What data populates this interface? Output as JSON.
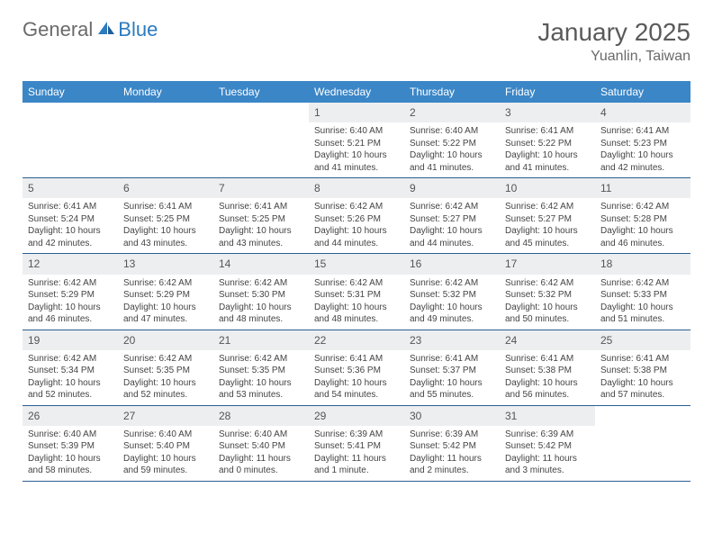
{
  "brand": {
    "part1": "General",
    "part2": "Blue"
  },
  "title": "January 2025",
  "location": "Yuanlin, Taiwan",
  "colors": {
    "header_bg": "#3b86c7",
    "header_text": "#ffffff",
    "daynum_bg": "#eceef0",
    "border": "#2b5f91",
    "text": "#444444",
    "title_text": "#5a5a5a",
    "brand_gray": "#6a6a6a",
    "brand_blue": "#2b7bbf"
  },
  "day_headers": [
    "Sunday",
    "Monday",
    "Tuesday",
    "Wednesday",
    "Thursday",
    "Friday",
    "Saturday"
  ],
  "weeks": [
    [
      {
        "empty": true
      },
      {
        "empty": true
      },
      {
        "empty": true
      },
      {
        "num": "1",
        "sunrise": "Sunrise: 6:40 AM",
        "sunset": "Sunset: 5:21 PM",
        "daylight": "Daylight: 10 hours and 41 minutes."
      },
      {
        "num": "2",
        "sunrise": "Sunrise: 6:40 AM",
        "sunset": "Sunset: 5:22 PM",
        "daylight": "Daylight: 10 hours and 41 minutes."
      },
      {
        "num": "3",
        "sunrise": "Sunrise: 6:41 AM",
        "sunset": "Sunset: 5:22 PM",
        "daylight": "Daylight: 10 hours and 41 minutes."
      },
      {
        "num": "4",
        "sunrise": "Sunrise: 6:41 AM",
        "sunset": "Sunset: 5:23 PM",
        "daylight": "Daylight: 10 hours and 42 minutes."
      }
    ],
    [
      {
        "num": "5",
        "sunrise": "Sunrise: 6:41 AM",
        "sunset": "Sunset: 5:24 PM",
        "daylight": "Daylight: 10 hours and 42 minutes."
      },
      {
        "num": "6",
        "sunrise": "Sunrise: 6:41 AM",
        "sunset": "Sunset: 5:25 PM",
        "daylight": "Daylight: 10 hours and 43 minutes."
      },
      {
        "num": "7",
        "sunrise": "Sunrise: 6:41 AM",
        "sunset": "Sunset: 5:25 PM",
        "daylight": "Daylight: 10 hours and 43 minutes."
      },
      {
        "num": "8",
        "sunrise": "Sunrise: 6:42 AM",
        "sunset": "Sunset: 5:26 PM",
        "daylight": "Daylight: 10 hours and 44 minutes."
      },
      {
        "num": "9",
        "sunrise": "Sunrise: 6:42 AM",
        "sunset": "Sunset: 5:27 PM",
        "daylight": "Daylight: 10 hours and 44 minutes."
      },
      {
        "num": "10",
        "sunrise": "Sunrise: 6:42 AM",
        "sunset": "Sunset: 5:27 PM",
        "daylight": "Daylight: 10 hours and 45 minutes."
      },
      {
        "num": "11",
        "sunrise": "Sunrise: 6:42 AM",
        "sunset": "Sunset: 5:28 PM",
        "daylight": "Daylight: 10 hours and 46 minutes."
      }
    ],
    [
      {
        "num": "12",
        "sunrise": "Sunrise: 6:42 AM",
        "sunset": "Sunset: 5:29 PM",
        "daylight": "Daylight: 10 hours and 46 minutes."
      },
      {
        "num": "13",
        "sunrise": "Sunrise: 6:42 AM",
        "sunset": "Sunset: 5:29 PM",
        "daylight": "Daylight: 10 hours and 47 minutes."
      },
      {
        "num": "14",
        "sunrise": "Sunrise: 6:42 AM",
        "sunset": "Sunset: 5:30 PM",
        "daylight": "Daylight: 10 hours and 48 minutes."
      },
      {
        "num": "15",
        "sunrise": "Sunrise: 6:42 AM",
        "sunset": "Sunset: 5:31 PM",
        "daylight": "Daylight: 10 hours and 48 minutes."
      },
      {
        "num": "16",
        "sunrise": "Sunrise: 6:42 AM",
        "sunset": "Sunset: 5:32 PM",
        "daylight": "Daylight: 10 hours and 49 minutes."
      },
      {
        "num": "17",
        "sunrise": "Sunrise: 6:42 AM",
        "sunset": "Sunset: 5:32 PM",
        "daylight": "Daylight: 10 hours and 50 minutes."
      },
      {
        "num": "18",
        "sunrise": "Sunrise: 6:42 AM",
        "sunset": "Sunset: 5:33 PM",
        "daylight": "Daylight: 10 hours and 51 minutes."
      }
    ],
    [
      {
        "num": "19",
        "sunrise": "Sunrise: 6:42 AM",
        "sunset": "Sunset: 5:34 PM",
        "daylight": "Daylight: 10 hours and 52 minutes."
      },
      {
        "num": "20",
        "sunrise": "Sunrise: 6:42 AM",
        "sunset": "Sunset: 5:35 PM",
        "daylight": "Daylight: 10 hours and 52 minutes."
      },
      {
        "num": "21",
        "sunrise": "Sunrise: 6:42 AM",
        "sunset": "Sunset: 5:35 PM",
        "daylight": "Daylight: 10 hours and 53 minutes."
      },
      {
        "num": "22",
        "sunrise": "Sunrise: 6:41 AM",
        "sunset": "Sunset: 5:36 PM",
        "daylight": "Daylight: 10 hours and 54 minutes."
      },
      {
        "num": "23",
        "sunrise": "Sunrise: 6:41 AM",
        "sunset": "Sunset: 5:37 PM",
        "daylight": "Daylight: 10 hours and 55 minutes."
      },
      {
        "num": "24",
        "sunrise": "Sunrise: 6:41 AM",
        "sunset": "Sunset: 5:38 PM",
        "daylight": "Daylight: 10 hours and 56 minutes."
      },
      {
        "num": "25",
        "sunrise": "Sunrise: 6:41 AM",
        "sunset": "Sunset: 5:38 PM",
        "daylight": "Daylight: 10 hours and 57 minutes."
      }
    ],
    [
      {
        "num": "26",
        "sunrise": "Sunrise: 6:40 AM",
        "sunset": "Sunset: 5:39 PM",
        "daylight": "Daylight: 10 hours and 58 minutes."
      },
      {
        "num": "27",
        "sunrise": "Sunrise: 6:40 AM",
        "sunset": "Sunset: 5:40 PM",
        "daylight": "Daylight: 10 hours and 59 minutes."
      },
      {
        "num": "28",
        "sunrise": "Sunrise: 6:40 AM",
        "sunset": "Sunset: 5:40 PM",
        "daylight": "Daylight: 11 hours and 0 minutes."
      },
      {
        "num": "29",
        "sunrise": "Sunrise: 6:39 AM",
        "sunset": "Sunset: 5:41 PM",
        "daylight": "Daylight: 11 hours and 1 minute."
      },
      {
        "num": "30",
        "sunrise": "Sunrise: 6:39 AM",
        "sunset": "Sunset: 5:42 PM",
        "daylight": "Daylight: 11 hours and 2 minutes."
      },
      {
        "num": "31",
        "sunrise": "Sunrise: 6:39 AM",
        "sunset": "Sunset: 5:42 PM",
        "daylight": "Daylight: 11 hours and 3 minutes."
      },
      {
        "empty": true
      }
    ]
  ]
}
